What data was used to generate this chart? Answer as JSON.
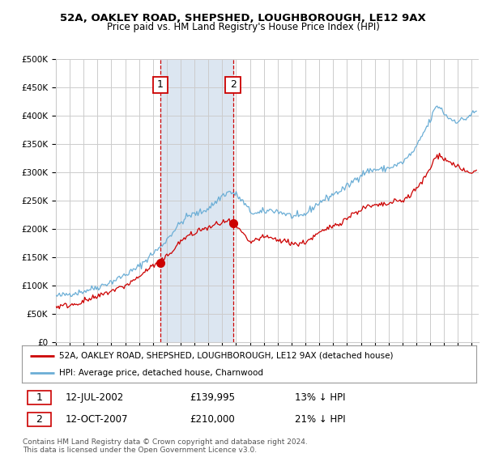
{
  "title": "52A, OAKLEY ROAD, SHEPSHED, LOUGHBOROUGH, LE12 9AX",
  "subtitle": "Price paid vs. HM Land Registry's House Price Index (HPI)",
  "legend_line1": "52A, OAKLEY ROAD, SHEPSHED, LOUGHBOROUGH, LE12 9AX (detached house)",
  "legend_line2": "HPI: Average price, detached house, Charnwood",
  "sale1_date": "12-JUL-2002",
  "sale1_price": 139995,
  "sale1_price_str": "£139,995",
  "sale1_hpi": "13% ↓ HPI",
  "sale1_year": 2002.54,
  "sale2_date": "12-OCT-2007",
  "sale2_price": 210000,
  "sale2_price_str": "£210,000",
  "sale2_hpi": "21% ↓ HPI",
  "sale2_year": 2007.79,
  "hpi_color": "#6baed6",
  "price_color": "#cc0000",
  "marker_box_color": "#cc0000",
  "shade_color": "#dce6f1",
  "grid_color": "#cccccc",
  "background_color": "#ffffff",
  "ylim": [
    0,
    500000
  ],
  "xlim_start": 1995.0,
  "xlim_end": 2025.5,
  "footnote1": "Contains HM Land Registry data © Crown copyright and database right 2024.",
  "footnote2": "This data is licensed under the Open Government Licence v3.0."
}
